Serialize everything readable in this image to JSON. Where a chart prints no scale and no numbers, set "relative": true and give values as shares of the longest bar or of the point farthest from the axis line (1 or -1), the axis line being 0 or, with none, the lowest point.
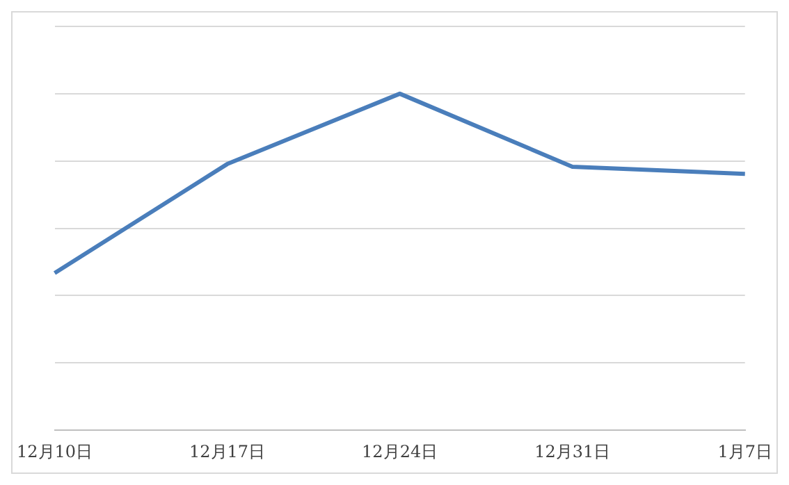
{
  "chart_data": {
    "type": "line",
    "relative": true,
    "categories": [
      "12月10日",
      "12月17日",
      "12月24日",
      "12月31日",
      "1月7日"
    ],
    "series": [
      {
        "color": "#4a7ebb",
        "values": [
          0.467,
          0.791,
          1,
          0.783,
          0.762
        ]
      }
    ],
    "grid": "y",
    "legend": false,
    "marker": "none",
    "line_style": "solid"
  }
}
